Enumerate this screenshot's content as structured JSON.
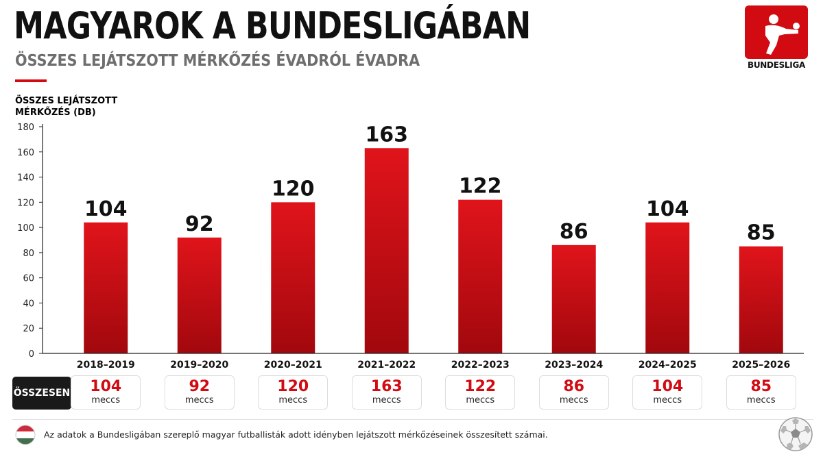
{
  "header": {
    "title": "MAGYAROK A BUNDESLIGÁBAN",
    "subtitle": "ÖSSZES LEJÁTSZOTT MÉRKŐZÉS ÉVADRÓL ÉVADRA",
    "logo_text": "BUNDESLIGA"
  },
  "colors": {
    "accent": "#d20a11",
    "bar_top": "#e0141b",
    "bar_bottom": "#a1080d",
    "dark": "#1a1a1a"
  },
  "chart_data": {
    "type": "bar",
    "title": "MAGYAROK A BUNDESLIGÁBAN",
    "subtitle": "ÖSSZES LEJÁTSZOTT MÉRKŐZÉS ÉVADRÓL ÉVADRA",
    "ylabel": [
      "ÖSSZES LEJÁTSZOTT",
      "MÉRKŐZÉS (DB)"
    ],
    "xlabel": "",
    "categories": [
      "2018–2019",
      "2019–2020",
      "2020–2021",
      "2021–2022",
      "2022–2023",
      "2023–2024",
      "2024–2025",
      "2025–2026"
    ],
    "values": [
      104,
      92,
      120,
      163,
      122,
      86,
      104,
      85
    ],
    "ylim": [
      0,
      180
    ],
    "yticks": [
      0,
      20,
      40,
      60,
      80,
      100,
      120,
      140,
      160,
      180
    ],
    "grid": false,
    "data_labels": true
  },
  "totals": {
    "label": "ÖSSZESEN",
    "unit": "meccs",
    "values": [
      "104",
      "92",
      "120",
      "163",
      "122",
      "86",
      "104",
      "85"
    ]
  },
  "footer": {
    "note": "Az adatok a Bundesligában szereplő magyar futballisták adott idényben lejátszott mérkőzéseinek összesített számai.",
    "flag_icon": "hungary-flag-icon",
    "ball_icon": "soccer-ball-icon"
  }
}
